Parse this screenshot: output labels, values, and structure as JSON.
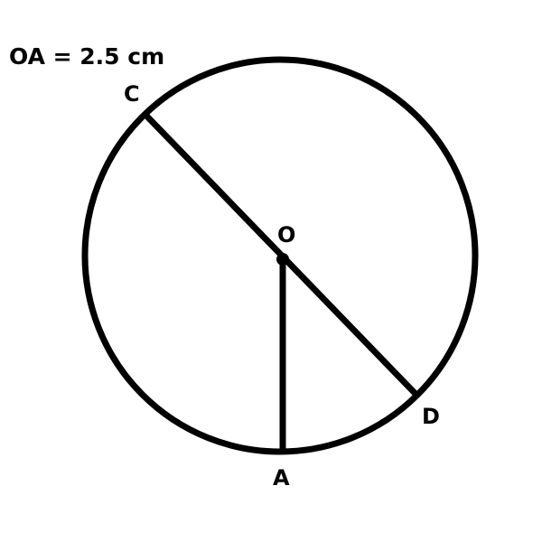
{
  "given": "OA = 2.5 cm",
  "points": {
    "c": "C",
    "o": "O",
    "d": "D",
    "a": "A"
  },
  "segments": [
    {
      "name": "diameter-cd",
      "from": "C",
      "to": "D"
    },
    {
      "name": "radius-oa",
      "from": "O",
      "to": "A"
    }
  ],
  "colors": {
    "stroke": "#000000",
    "background": "#ffffff"
  }
}
